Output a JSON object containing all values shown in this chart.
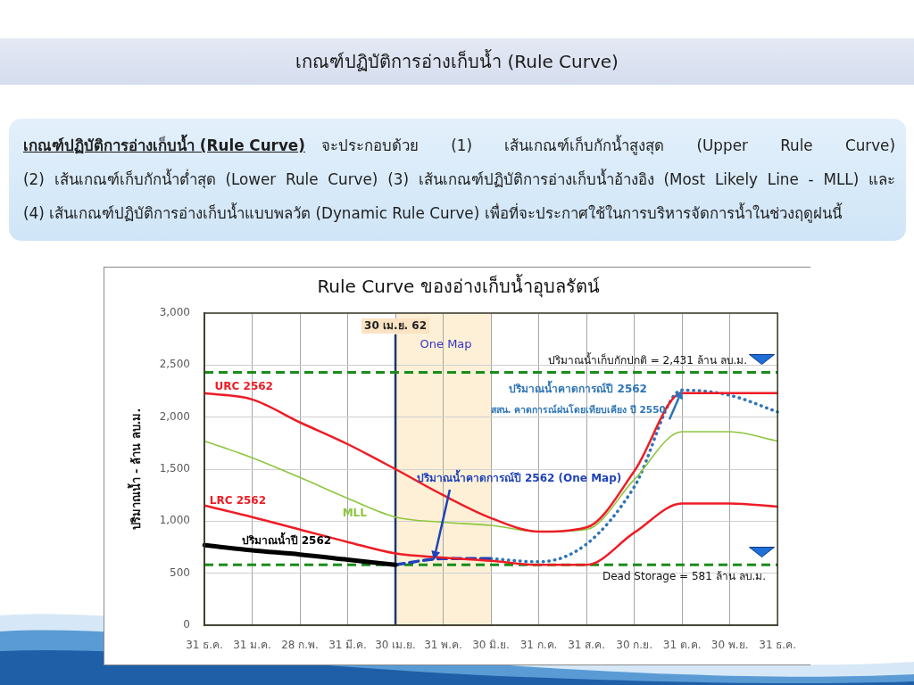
{
  "chart_data": {
    "type": "line",
    "title": "Rule Curve ของอ่างเก็บน้ำอุบลรัตน์",
    "ylabel": "ปริมาณน้ำ - ล้าน ลบ.ม.",
    "categories": [
      "31 ธ.ค.",
      "31 ม.ค.",
      "28 ก.พ.",
      "31 มี.ค.",
      "30 เม.ย.",
      "31 พ.ค.",
      "30 มิ.ย.",
      "31 ก.ค.",
      "31 ส.ค.",
      "30 ก.ย.",
      "31 ต.ค.",
      "30 พ.ย.",
      "31 ธ.ค."
    ],
    "ylim": [
      0,
      3000
    ],
    "yticks": [
      0,
      500,
      {
        "value": 1000,
        "label": "1,000"
      },
      {
        "value": 1500,
        "label": "1,500"
      },
      {
        "value": 2000,
        "label": "2,000"
      },
      {
        "value": 2500,
        "label": "2,500"
      },
      {
        "value": 3000,
        "label": "3,000"
      }
    ],
    "grid": true,
    "series": [
      {
        "name": "URC 2562",
        "color": "#ee1c25",
        "values": [
          2230,
          2170,
          1950,
          1740,
          1500,
          1250,
          1030,
          900,
          940,
          1480,
          2230,
          2230,
          2230
        ]
      },
      {
        "name": "LRC 2562",
        "color": "#ee1c25",
        "values": [
          1150,
          1040,
          920,
          800,
          690,
          650,
          620,
          580,
          580,
          890,
          1170,
          1170,
          1140
        ]
      },
      {
        "name": "MLL",
        "color": "#8dc63f",
        "values": [
          1770,
          1610,
          1420,
          1220,
          1040,
          990,
          960,
          900,
          920,
          1400,
          1860,
          1860,
          1770
        ]
      },
      {
        "name": "ปริมาณน้ำปี 2562",
        "color": "#000000",
        "values": [
          770,
          720,
          680,
          630,
          580,
          null,
          null,
          null,
          null,
          null,
          null,
          null,
          null
        ]
      },
      {
        "name": "ปริมาณน้ำคาดการณ์ปี 2562 (One Map)",
        "color": "#2043b8",
        "line_style": "dashed",
        "values": [
          null,
          null,
          null,
          null,
          580,
          640,
          640,
          null,
          null,
          null,
          null,
          null,
          null
        ]
      },
      {
        "name": "ปริมาณน้ำคาดการณ์ปี 2562",
        "color": "#2e75b6",
        "line_style": "dotted",
        "values": [
          null,
          null,
          null,
          null,
          null,
          null,
          640,
          610,
          780,
          1330,
          2260,
          2210,
          2050
        ]
      }
    ],
    "ref_lines": [
      {
        "axis": "x",
        "value": "30 เม.ย.",
        "label": "30 เม.ย. 62",
        "color": "#1f3864"
      },
      {
        "axis": "y",
        "value": 2431,
        "label": "ปริมาณน้ำเก็บกักปกติ = 2,431 ล้าน ลบ.ม.",
        "color": "#1a8c1a",
        "line_style": "dashed"
      },
      {
        "axis": "y",
        "value": 581,
        "label": "Dead Storage = 581 ล้าน ลบ.ม.",
        "color": "#1a8c1a",
        "line_style": "dashed"
      }
    ],
    "bands": [
      {
        "axis": "x",
        "from": "30 เม.ย.",
        "to": "30 มิ.ย.",
        "label": "One Map",
        "color": "#fdf0d6"
      }
    ],
    "annotations": [
      "เกณฑ์ปฏิบัติการอ่างเก็บน้ำ (Rule Curve)",
      "เกณฑ์ปฏิบัติการอ่างเก็บน้ำ (Rule Curve)",
      "จะประกอบด้วย (1) เส้นเกณฑ์เก็บกักน้ำสูงสุด (Upper Rule Curve)",
      "(2) เส้นเกณฑ์เก็บกักน้ำต่ำสุด (Lower Rule Curve) (3) เส้นเกณฑ์ปฏิบัติการอ่างเก็บน้ำอ้างอิง (Most Likely Line - MLL) และ",
      "(4) เส้นเกณฑ์ปฏิบัติการอ่างเก็บน้ำแบบพลวัต (Dynamic Rule Curve) เพื่อที่จะประกาศใช้ในการบริหารจัดการน้ำในช่วงฤดูฝนนี้",
      {
        "text": "สสน. คาดการณ์ฝนโดยเทียบเคียง ปี 2550",
        "x": "31 ต.ค.",
        "y": 2260
      }
    ]
  }
}
